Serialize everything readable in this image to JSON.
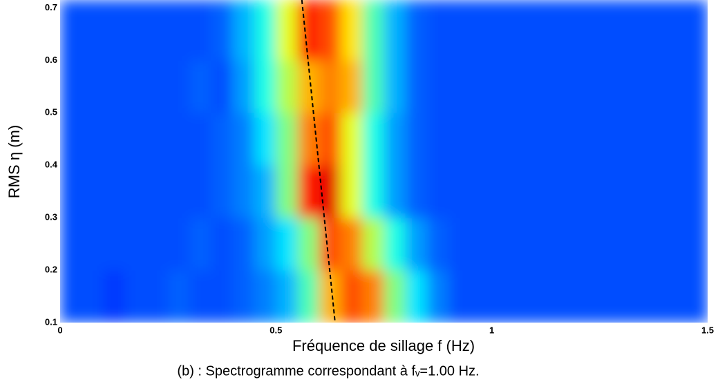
{
  "chart_data": {
    "type": "heatmap",
    "y_label": "RMS η (m)",
    "x_label": "Fréquence de sillage f (Hz)",
    "caption": "(b) : Spectrogramme correspondant à fᵥ=1.00 Hz.",
    "xlim": [
      0,
      1.5
    ],
    "ylim": [
      0.1,
      0.715
    ],
    "xticks": [
      0,
      0.5,
      1,
      1.5
    ],
    "yticks": [
      0.1,
      0.2,
      0.3,
      0.4,
      0.5,
      0.6,
      0.7
    ],
    "x_bins": [
      0,
      0.05,
      0.1,
      0.15,
      0.2,
      0.25,
      0.3,
      0.35,
      0.4,
      0.45,
      0.5,
      0.55,
      0.6,
      0.65,
      0.7,
      0.75,
      0.8,
      0.85,
      0.9,
      0.95,
      1,
      1.05,
      1.1,
      1.15,
      1.2,
      1.25,
      1.3,
      1.35,
      1.4,
      1.45,
      1.5
    ],
    "y_bins": [
      0.1,
      0.2,
      0.3,
      0.4,
      0.5,
      0.6,
      0.715
    ],
    "z": [
      [
        0.2,
        0.2,
        0.18,
        0.2,
        0.2,
        0.22,
        0.2,
        0.2,
        0.22,
        0.25,
        0.3,
        0.45,
        0.7,
        0.8,
        0.75,
        0.5,
        0.35,
        0.25,
        0.2,
        0.2,
        0.2,
        0.2,
        0.2,
        0.2,
        0.2,
        0.2,
        0.2,
        0.2,
        0.2,
        0.2
      ],
      [
        0.2,
        0.2,
        0.2,
        0.2,
        0.2,
        0.2,
        0.22,
        0.2,
        0.22,
        0.28,
        0.35,
        0.5,
        0.8,
        0.75,
        0.55,
        0.4,
        0.28,
        0.22,
        0.2,
        0.2,
        0.2,
        0.2,
        0.2,
        0.2,
        0.2,
        0.2,
        0.2,
        0.2,
        0.2,
        0.2
      ],
      [
        0.2,
        0.2,
        0.2,
        0.2,
        0.2,
        0.2,
        0.2,
        0.22,
        0.25,
        0.3,
        0.5,
        0.85,
        0.9,
        0.6,
        0.4,
        0.28,
        0.22,
        0.2,
        0.2,
        0.2,
        0.2,
        0.2,
        0.2,
        0.2,
        0.2,
        0.2,
        0.2,
        0.2,
        0.2,
        0.2
      ],
      [
        0.2,
        0.2,
        0.2,
        0.2,
        0.2,
        0.2,
        0.2,
        0.22,
        0.25,
        0.35,
        0.5,
        0.75,
        0.8,
        0.6,
        0.4,
        0.28,
        0.22,
        0.2,
        0.2,
        0.2,
        0.2,
        0.2,
        0.2,
        0.2,
        0.2,
        0.2,
        0.2,
        0.2,
        0.2,
        0.2
      ],
      [
        0.2,
        0.2,
        0.2,
        0.2,
        0.2,
        0.2,
        0.22,
        0.2,
        0.28,
        0.4,
        0.55,
        0.7,
        0.75,
        0.7,
        0.45,
        0.3,
        0.22,
        0.2,
        0.2,
        0.2,
        0.2,
        0.2,
        0.2,
        0.2,
        0.2,
        0.2,
        0.2,
        0.2,
        0.2,
        0.2
      ],
      [
        0.2,
        0.2,
        0.2,
        0.2,
        0.2,
        0.2,
        0.2,
        0.22,
        0.3,
        0.4,
        0.6,
        0.85,
        0.8,
        0.65,
        0.45,
        0.3,
        0.22,
        0.2,
        0.2,
        0.2,
        0.2,
        0.2,
        0.2,
        0.2,
        0.2,
        0.2,
        0.2,
        0.2,
        0.2,
        0.2
      ]
    ],
    "ridge_line": {
      "x": [
        0.56,
        0.637
      ],
      "y": [
        0.715,
        0.1
      ],
      "color": "#000000"
    }
  }
}
